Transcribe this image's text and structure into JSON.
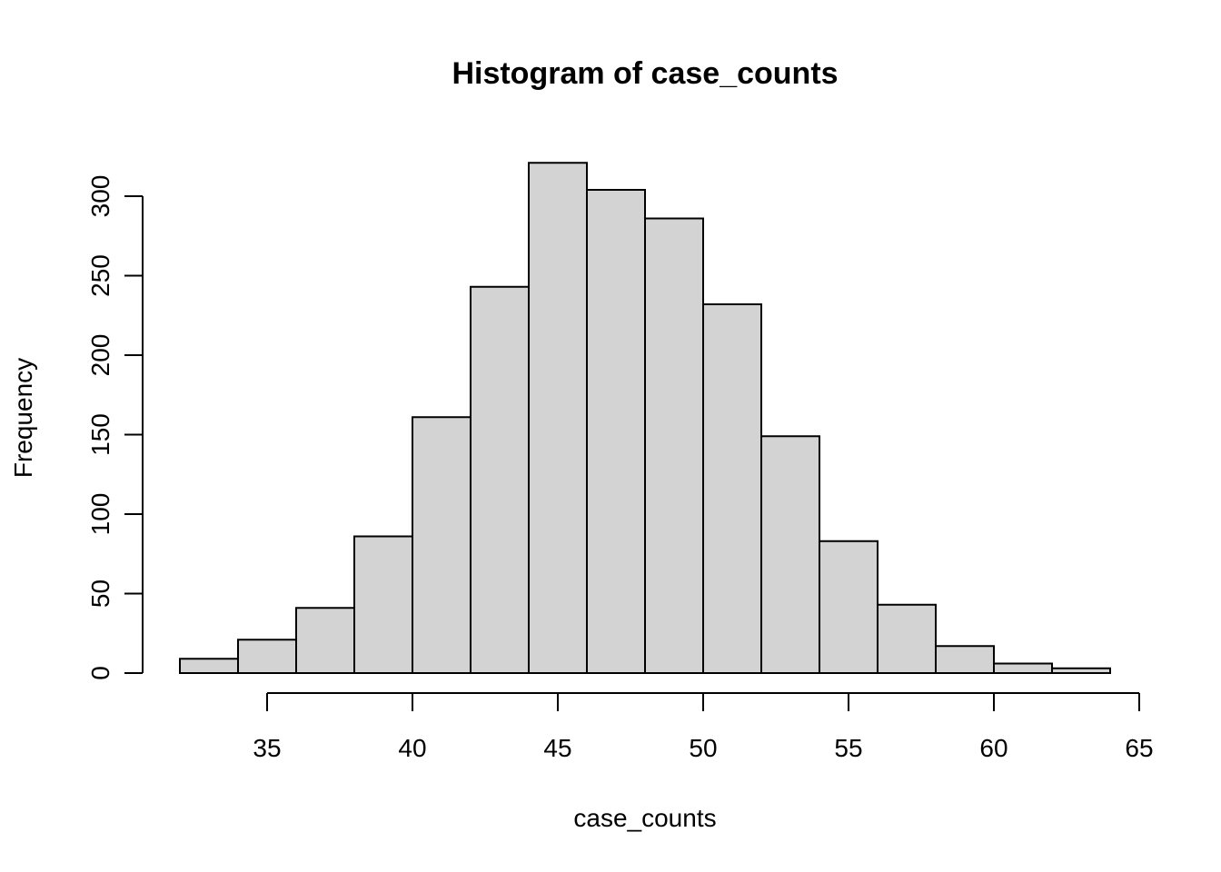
{
  "chart_data": {
    "type": "bar",
    "title": "Histogram of case_counts",
    "xlabel": "case_counts",
    "ylabel": "Frequency",
    "bins": [
      {
        "start": 32,
        "end": 34,
        "count": 9
      },
      {
        "start": 34,
        "end": 36,
        "count": 21
      },
      {
        "start": 36,
        "end": 38,
        "count": 41
      },
      {
        "start": 38,
        "end": 40,
        "count": 86
      },
      {
        "start": 40,
        "end": 42,
        "count": 161
      },
      {
        "start": 42,
        "end": 44,
        "count": 243
      },
      {
        "start": 44,
        "end": 46,
        "count": 321
      },
      {
        "start": 46,
        "end": 48,
        "count": 304
      },
      {
        "start": 48,
        "end": 50,
        "count": 286
      },
      {
        "start": 50,
        "end": 52,
        "count": 232
      },
      {
        "start": 52,
        "end": 54,
        "count": 149
      },
      {
        "start": 54,
        "end": 56,
        "count": 83
      },
      {
        "start": 56,
        "end": 58,
        "count": 43
      },
      {
        "start": 58,
        "end": 60,
        "count": 17
      },
      {
        "start": 60,
        "end": 62,
        "count": 6
      },
      {
        "start": 62,
        "end": 64,
        "count": 3
      }
    ],
    "xlim": [
      31.4,
      65
    ],
    "ylim": [
      0,
      321
    ],
    "x_ticks": [
      "35",
      "40",
      "45",
      "50",
      "55",
      "60",
      "65"
    ],
    "y_ticks": [
      "0",
      "50",
      "100",
      "150",
      "200",
      "250",
      "300"
    ],
    "grid": false,
    "colors": {
      "bar_fill": "#d3d3d3",
      "bar_stroke": "#000000"
    }
  }
}
